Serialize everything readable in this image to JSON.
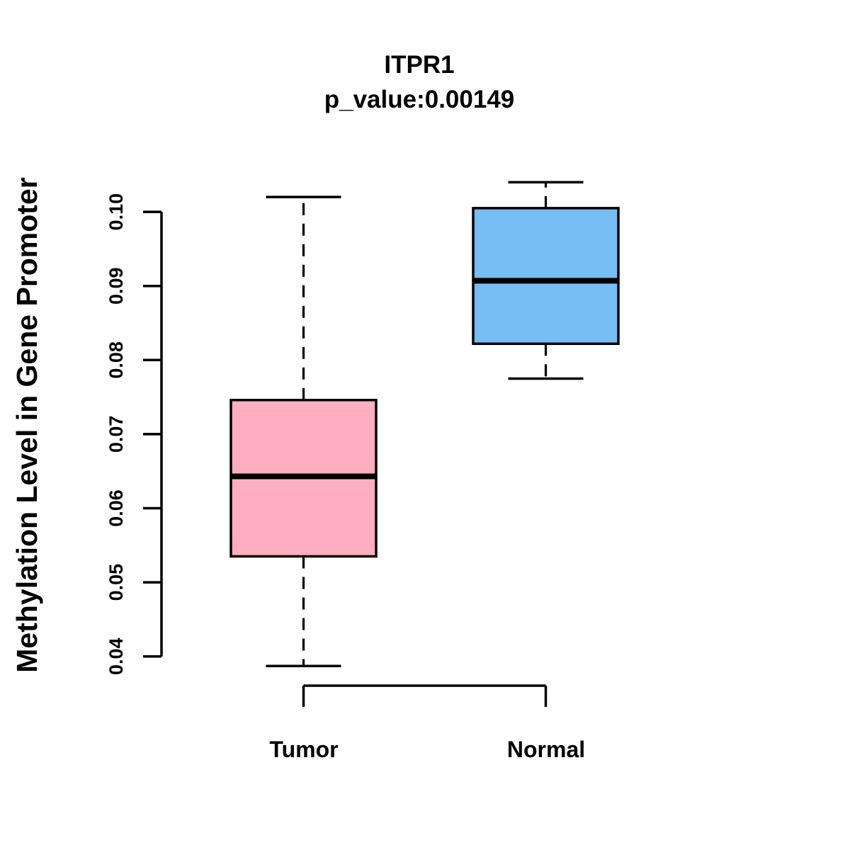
{
  "chart_data": {
    "type": "boxplot",
    "title": "ITPR1",
    "subtitle": "p_value:0.00149",
    "ylabel": "Methylation Level in Gene Promoter",
    "xlabel": "",
    "categories": [
      "Tumor",
      "Normal"
    ],
    "y_ticks": [
      0.04,
      0.05,
      0.06,
      0.07,
      0.08,
      0.09,
      0.1
    ],
    "y_tick_labels": [
      "0.04",
      "0.05",
      "0.06",
      "0.07",
      "0.08",
      "0.09",
      "0.10"
    ],
    "ylim": [
      0.0385,
      0.104
    ],
    "grid": false,
    "legend": "none",
    "series": [
      {
        "name": "Tumor",
        "color": "#FFAEC1",
        "whisker_low": 0.0387,
        "q1": 0.0535,
        "median": 0.0643,
        "q3": 0.0746,
        "whisker_high": 0.102
      },
      {
        "name": "Normal",
        "color": "#77BEF5",
        "whisker_low": 0.0775,
        "q1": 0.0822,
        "median": 0.0907,
        "q3": 0.1005,
        "whisker_high": 0.104
      }
    ],
    "colors": {
      "axis": "#000000",
      "text": "#000000",
      "median_line": "#000000",
      "box_border": "#000000",
      "background": "#ffffff"
    }
  }
}
